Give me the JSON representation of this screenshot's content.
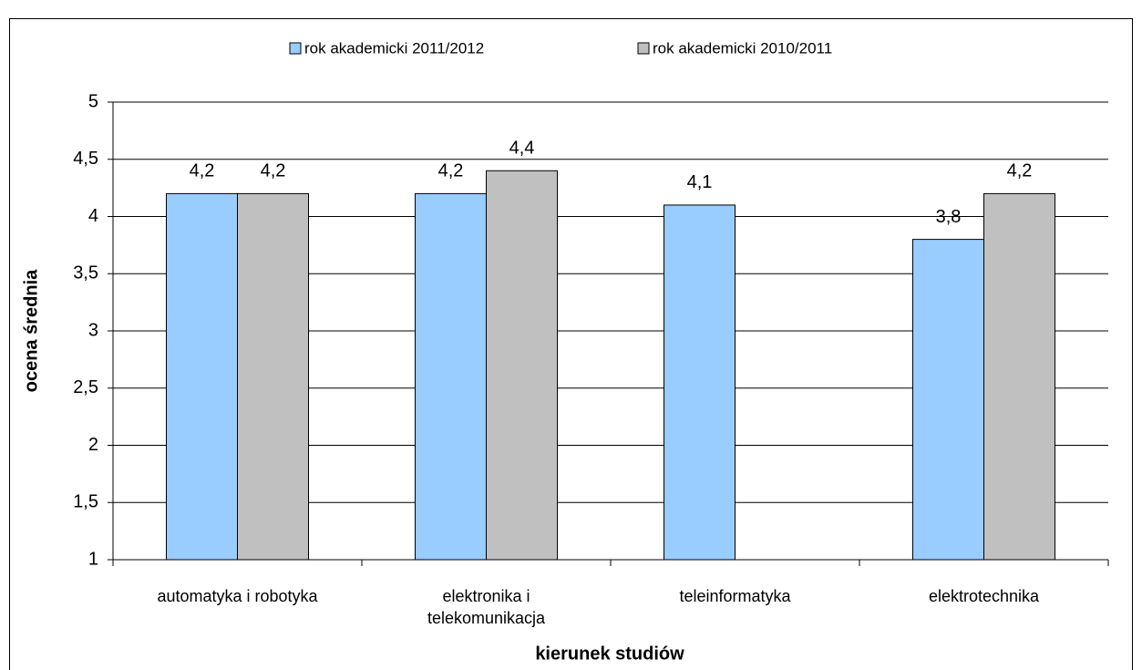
{
  "chart_data": {
    "type": "bar",
    "x_label": "kierunek studiów",
    "y_label": "ocena średnia",
    "categories": [
      "automatyka i robotyka",
      "elektronika i telekomunikacja",
      "teleinformatyka",
      "elektrotechnika"
    ],
    "series": [
      {
        "name": "rok akademicki 2011/2012",
        "color": "#99ccff",
        "values": [
          4.2,
          4.2,
          4.1,
          3.8
        ],
        "value_labels": [
          "4,2",
          "4,2",
          "4,1",
          "3,8"
        ]
      },
      {
        "name": "rok akademicki 2010/2011",
        "color": "#c0c0c0",
        "values": [
          4.2,
          4.4,
          null,
          4.2
        ],
        "value_labels": [
          "4,2",
          "4,4",
          null,
          "4,2"
        ]
      }
    ],
    "ylim": [
      1,
      5
    ],
    "yticks": [
      1,
      {
        "value": 1.5,
        "label": "1,5"
      },
      2,
      {
        "value": 2.5,
        "label": "2,5"
      },
      3,
      {
        "value": 3.5,
        "label": "3,5"
      },
      4,
      {
        "value": 4.5,
        "label": "4,5"
      },
      5
    ],
    "grid": true,
    "legend": "top"
  }
}
